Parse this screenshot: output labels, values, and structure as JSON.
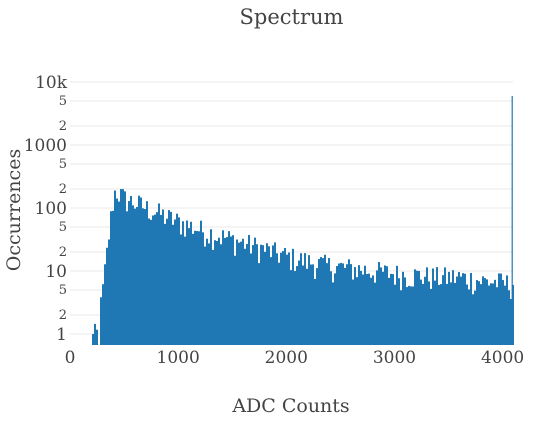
{
  "chart_data": {
    "type": "bar",
    "title": "Spectrum",
    "xlabel": "ADC Counts",
    "ylabel": "Occurrences",
    "y_scale": "log",
    "xlim": [
      0,
      4096
    ],
    "ylim": [
      0.6,
      10000
    ],
    "grid": true,
    "color": "#1f77b4",
    "x_ticks": [
      {
        "value": 0,
        "label": "0"
      },
      {
        "value": 1000,
        "label": "1000"
      },
      {
        "value": 2000,
        "label": "2000"
      },
      {
        "value": 3000,
        "label": "3000"
      },
      {
        "value": 4000,
        "label": "4000"
      }
    ],
    "y_major_ticks": [
      {
        "value": 1,
        "label": "1"
      },
      {
        "value": 10,
        "label": "10"
      },
      {
        "value": 100,
        "label": "100"
      },
      {
        "value": 1000,
        "label": "1000"
      },
      {
        "value": 10000,
        "label": "10k"
      }
    ],
    "y_minor_ticks": [
      {
        "value": 2,
        "label": "2"
      },
      {
        "value": 5,
        "label": "5"
      },
      {
        "value": 20,
        "label": "2"
      },
      {
        "value": 50,
        "label": "5"
      },
      {
        "value": 200,
        "label": "2"
      },
      {
        "value": 500,
        "label": "5"
      },
      {
        "value": 2000,
        "label": "2"
      },
      {
        "value": 5000,
        "label": "5"
      }
    ],
    "envelope": {
      "x": [
        0,
        150,
        200,
        240,
        260,
        280,
        300,
        320,
        340,
        360,
        380,
        400,
        420,
        460,
        500,
        600,
        700,
        800,
        900,
        1000,
        1200,
        1400,
        1600,
        1800,
        2000,
        2200,
        2400,
        2600,
        2800,
        3000,
        3200,
        3400,
        3600,
        3800,
        4000,
        4090,
        4094,
        4095
      ],
      "y": [
        0,
        0,
        1,
        1,
        2,
        3,
        6,
        12,
        25,
        50,
        100,
        170,
        190,
        160,
        140,
        120,
        100,
        85,
        70,
        60,
        45,
        35,
        28,
        22,
        17,
        14,
        12,
        11,
        10,
        9,
        8.5,
        8,
        8,
        7,
        6.5,
        6,
        6000,
        6000
      ]
    }
  }
}
